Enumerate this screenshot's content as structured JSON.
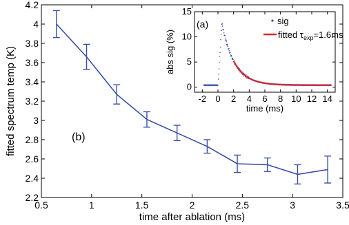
{
  "chart_data": [
    {
      "type": "line",
      "panel_label": "(b)",
      "xlabel": "time after ablation (ms)",
      "ylabel": "fitted spectrum temp (K)",
      "xlim": [
        0.5,
        3.5
      ],
      "ylim": [
        2.2,
        4.2
      ],
      "xticks": [
        0.5,
        1,
        1.5,
        2,
        2.5,
        3,
        3.5
      ],
      "xtick_labels": [
        "0.5",
        "1",
        "1.5",
        "2",
        "2.5",
        "3",
        "3.5"
      ],
      "yticks": [
        2.2,
        2.4,
        2.6,
        2.8,
        3.0,
        3.2,
        3.4,
        3.6,
        3.8,
        4.0,
        4.2
      ],
      "ytick_labels": [
        "2.2",
        "2.4",
        "2.6",
        "2.8",
        "3",
        "3.2",
        "3.4",
        "3.6",
        "3.8",
        "4",
        "4.2"
      ],
      "grid": false,
      "color": "#3a4ea8",
      "x": [
        0.65,
        0.95,
        1.25,
        1.55,
        1.85,
        2.15,
        2.45,
        2.75,
        3.05,
        3.35
      ],
      "y": [
        4.0,
        3.66,
        3.27,
        3.01,
        2.87,
        2.73,
        2.55,
        2.54,
        2.44,
        2.49
      ],
      "yerr": [
        0.14,
        0.13,
        0.1,
        0.08,
        0.08,
        0.07,
        0.09,
        0.07,
        0.1,
        0.14
      ]
    },
    {
      "type": "scatter",
      "panel_label": "(a)",
      "xlabel": "time (ms)",
      "ylabel": "abs sig (%)",
      "xlim": [
        -3,
        15
      ],
      "ylim": [
        -1,
        15
      ],
      "xticks": [
        -2,
        0,
        2,
        4,
        6,
        8,
        10,
        12,
        14
      ],
      "xtick_labels": [
        "-2",
        "0",
        "2",
        "4",
        "6",
        "8",
        "10",
        "12",
        "14"
      ],
      "yticks": [
        0,
        5,
        10,
        15
      ],
      "ytick_labels": [
        "0",
        "5",
        "10",
        "15"
      ],
      "grid": false,
      "legend_position": "top-right",
      "series": [
        {
          "name": "sig",
          "kind": "points",
          "color": "#3a4ea8"
        },
        {
          "name": "fitted τexp=1.6ms",
          "kind": "line",
          "color": "#e0202a",
          "tau_ms": 1.6,
          "fit_start_ms": 2.0
        }
      ],
      "peak": {
        "x": 0.5,
        "y": 12.7
      },
      "baseline": 0.4,
      "tail_start_x": 14.5
    }
  ],
  "legend": {
    "sig_label": "sig",
    "fitted_prefix": "fitted τ",
    "fitted_sub": "exp",
    "fitted_suffix": "=1.6ms"
  }
}
